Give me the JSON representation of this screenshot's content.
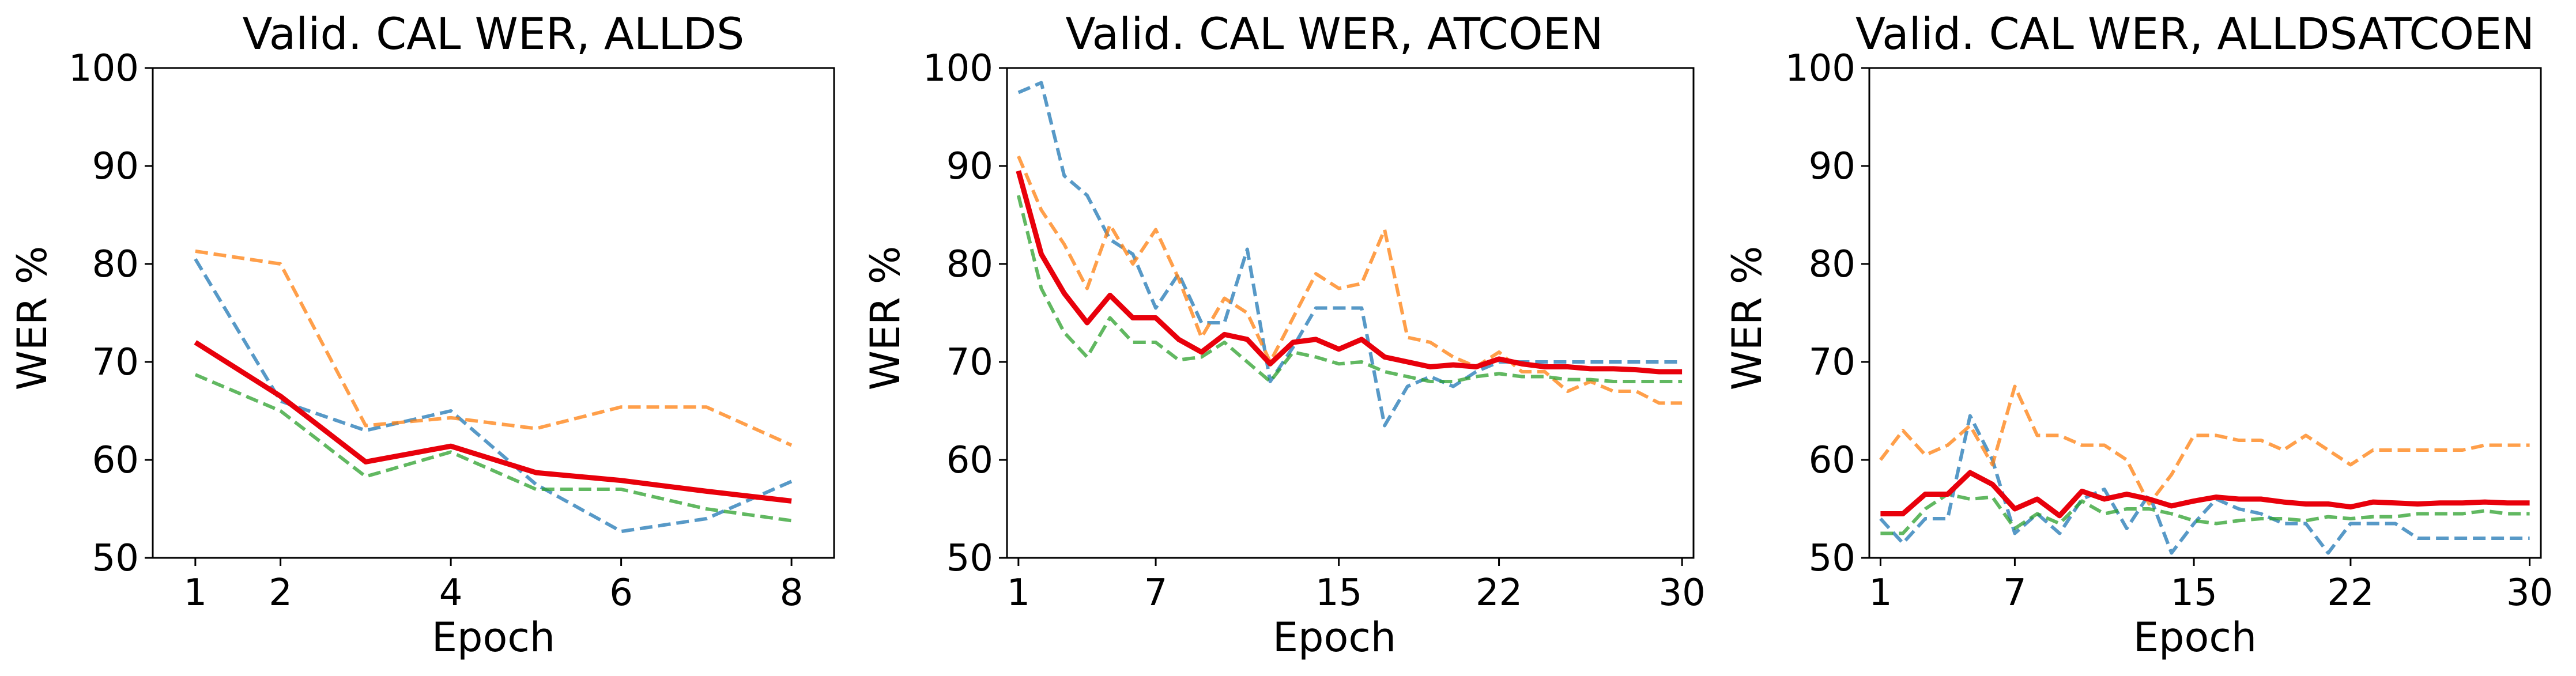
{
  "chart_data": [
    {
      "type": "line",
      "title": "Valid. CAL WER, ALLDS",
      "xlabel": "Epoch",
      "ylabel": "WER %",
      "xlim": [
        0.5,
        8.5
      ],
      "ylim": [
        50,
        100
      ],
      "xticks": [
        1,
        2,
        4,
        6,
        8
      ],
      "yticks": [
        50,
        60,
        70,
        80,
        90,
        100
      ],
      "grid": false,
      "series": [
        {
          "color": "#1f77b4",
          "style": "dashed",
          "x": [
            1,
            2,
            3,
            4,
            5,
            6,
            7,
            8
          ],
          "values": [
            80.5,
            66.0,
            63.0,
            65.0,
            57.5,
            52.7,
            54.0,
            57.8
          ]
        },
        {
          "color": "#ff7f0e",
          "style": "dashed",
          "x": [
            1,
            2,
            3,
            4,
            5,
            6,
            7,
            8
          ],
          "values": [
            81.3,
            80.0,
            63.5,
            64.3,
            63.2,
            65.4,
            65.4,
            61.5
          ]
        },
        {
          "color": "#2ca02c",
          "style": "dashed",
          "x": [
            1,
            2,
            3,
            4,
            5,
            6,
            7,
            8
          ],
          "values": [
            68.7,
            65.0,
            58.3,
            60.8,
            57.0,
            57.0,
            55.0,
            53.8
          ]
        },
        {
          "color": "#e8000b",
          "style": "solid",
          "x": [
            1,
            2,
            3,
            4,
            5,
            6,
            7,
            8
          ],
          "values": [
            72.0,
            66.5,
            59.8,
            61.4,
            58.7,
            57.9,
            56.8,
            55.8
          ]
        }
      ]
    },
    {
      "type": "line",
      "title": "Valid. CAL WER, ATCOEN",
      "xlabel": "Epoch",
      "ylabel": "WER %",
      "xlim": [
        0.5,
        30.5
      ],
      "ylim": [
        50,
        100
      ],
      "xticks": [
        1,
        7,
        15,
        22,
        30
      ],
      "yticks": [
        50,
        60,
        70,
        80,
        90,
        100
      ],
      "grid": false,
      "series": [
        {
          "color": "#1f77b4",
          "style": "dashed",
          "x": [
            1,
            2,
            3,
            4,
            5,
            6,
            7,
            8,
            9,
            10,
            11,
            12,
            13,
            14,
            15,
            16,
            17,
            18,
            19,
            20,
            21,
            22,
            23,
            24,
            25,
            26,
            27,
            28,
            29,
            30
          ],
          "values": [
            97.5,
            98.5,
            89.0,
            87.0,
            82.5,
            81.0,
            75.5,
            79.0,
            74.0,
            74.0,
            81.5,
            68.0,
            71.5,
            75.5,
            75.5,
            75.5,
            63.5,
            67.5,
            68.5,
            67.5,
            69.0,
            70.0,
            70.0,
            70.0,
            70.0,
            70.0,
            70.0,
            70.0,
            70.0,
            70.0
          ]
        },
        {
          "color": "#ff7f0e",
          "style": "dashed",
          "x": [
            1,
            2,
            3,
            4,
            5,
            6,
            7,
            8,
            9,
            10,
            11,
            12,
            13,
            14,
            15,
            16,
            17,
            18,
            19,
            20,
            21,
            22,
            23,
            24,
            25,
            26,
            27,
            28,
            29,
            30
          ],
          "values": [
            91.0,
            85.5,
            82.0,
            77.5,
            84.0,
            80.0,
            83.5,
            78.5,
            72.5,
            76.5,
            75.0,
            70.0,
            74.5,
            79.0,
            77.5,
            78.0,
            83.5,
            72.5,
            72.0,
            70.5,
            69.5,
            71.0,
            69.0,
            69.0,
            67.0,
            68.0,
            67.0,
            67.0,
            65.8,
            65.8
          ]
        },
        {
          "color": "#2ca02c",
          "style": "dashed",
          "x": [
            1,
            2,
            3,
            4,
            5,
            6,
            7,
            8,
            9,
            10,
            11,
            12,
            13,
            14,
            15,
            16,
            17,
            18,
            19,
            20,
            21,
            22,
            23,
            24,
            25,
            26,
            27,
            28,
            29,
            30
          ],
          "values": [
            87.0,
            77.5,
            73.0,
            70.5,
            74.5,
            72.0,
            72.0,
            70.2,
            70.5,
            72.0,
            70.0,
            68.0,
            71.0,
            70.5,
            69.8,
            70.0,
            69.0,
            68.5,
            68.0,
            68.0,
            68.5,
            68.8,
            68.5,
            68.5,
            68.2,
            68.2,
            68.0,
            68.0,
            68.0,
            68.0
          ]
        },
        {
          "color": "#e8000b",
          "style": "solid",
          "x": [
            1,
            2,
            3,
            4,
            5,
            6,
            7,
            8,
            9,
            10,
            11,
            12,
            13,
            14,
            15,
            16,
            17,
            18,
            19,
            20,
            21,
            22,
            23,
            24,
            25,
            26,
            27,
            28,
            29,
            30
          ],
          "values": [
            89.5,
            81.0,
            77.0,
            74.0,
            76.8,
            74.5,
            74.5,
            72.3,
            71.0,
            72.8,
            72.3,
            69.8,
            72.0,
            72.3,
            71.3,
            72.3,
            70.5,
            70.0,
            69.5,
            69.7,
            69.5,
            70.3,
            69.8,
            69.5,
            69.5,
            69.3,
            69.3,
            69.2,
            69.0,
            69.0
          ]
        }
      ]
    },
    {
      "type": "line",
      "title": "Valid. CAL WER, ALLDSATCOEN",
      "xlabel": "Epoch",
      "ylabel": "WER %",
      "xlim": [
        0.5,
        30.5
      ],
      "ylim": [
        50,
        100
      ],
      "xticks": [
        1,
        7,
        15,
        22,
        30
      ],
      "yticks": [
        50,
        60,
        70,
        80,
        90,
        100
      ],
      "grid": false,
      "series": [
        {
          "color": "#1f77b4",
          "style": "dashed",
          "x": [
            1,
            2,
            3,
            4,
            5,
            6,
            7,
            8,
            9,
            10,
            11,
            12,
            13,
            14,
            15,
            16,
            17,
            18,
            19,
            20,
            21,
            22,
            23,
            24,
            25,
            26,
            27,
            28,
            29,
            30
          ],
          "values": [
            54.0,
            51.5,
            54.0,
            54.0,
            64.5,
            60.0,
            52.5,
            54.5,
            52.5,
            56.0,
            57.0,
            53.0,
            56.5,
            50.5,
            53.5,
            56.0,
            55.0,
            54.5,
            53.5,
            53.5,
            50.5,
            53.5,
            53.5,
            53.5,
            52.0,
            52.0,
            52.0,
            52.0,
            52.0,
            52.0
          ]
        },
        {
          "color": "#ff7f0e",
          "style": "dashed",
          "x": [
            1,
            2,
            3,
            4,
            5,
            6,
            7,
            8,
            9,
            10,
            11,
            12,
            13,
            14,
            15,
            16,
            17,
            18,
            19,
            20,
            21,
            22,
            23,
            24,
            25,
            26,
            27,
            28,
            29,
            30
          ],
          "values": [
            60.0,
            63.0,
            60.5,
            61.5,
            63.5,
            59.5,
            67.5,
            62.5,
            62.5,
            61.5,
            61.5,
            60.0,
            55.5,
            58.5,
            62.5,
            62.5,
            62.0,
            62.0,
            61.0,
            62.5,
            61.0,
            59.5,
            61.0,
            61.0,
            61.0,
            61.0,
            61.0,
            61.5,
            61.5,
            61.5
          ]
        },
        {
          "color": "#2ca02c",
          "style": "dashed",
          "x": [
            1,
            2,
            3,
            4,
            5,
            6,
            7,
            8,
            9,
            10,
            11,
            12,
            13,
            14,
            15,
            16,
            17,
            18,
            19,
            20,
            21,
            22,
            23,
            24,
            25,
            26,
            27,
            28,
            29,
            30
          ],
          "values": [
            52.5,
            52.5,
            55.0,
            56.5,
            56.0,
            56.2,
            53.0,
            54.5,
            53.5,
            55.8,
            54.5,
            55.0,
            55.0,
            54.5,
            53.8,
            53.5,
            53.8,
            54.0,
            54.0,
            53.8,
            54.2,
            54.0,
            54.2,
            54.2,
            54.5,
            54.5,
            54.5,
            54.8,
            54.5,
            54.5
          ]
        },
        {
          "color": "#e8000b",
          "style": "solid",
          "x": [
            1,
            2,
            3,
            4,
            5,
            6,
            7,
            8,
            9,
            10,
            11,
            12,
            13,
            14,
            15,
            16,
            17,
            18,
            19,
            20,
            21,
            22,
            23,
            24,
            25,
            26,
            27,
            28,
            29,
            30
          ],
          "values": [
            54.5,
            54.5,
            56.5,
            56.5,
            58.7,
            57.5,
            55.0,
            56.0,
            54.3,
            56.8,
            56.0,
            56.5,
            56.0,
            55.3,
            55.8,
            56.2,
            56.0,
            56.0,
            55.7,
            55.5,
            55.5,
            55.2,
            55.7,
            55.6,
            55.5,
            55.6,
            55.6,
            55.7,
            55.6,
            55.6
          ]
        }
      ]
    }
  ]
}
